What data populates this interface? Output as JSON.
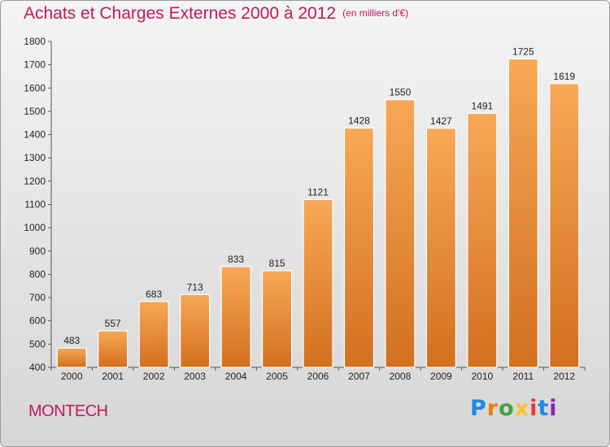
{
  "title": "Achats et Charges Externes 2000 à 2012",
  "subtitle": "(en milliers d'€)",
  "commune": "MONTECH",
  "logo": [
    "P",
    "r",
    "o",
    "x",
    "i",
    "t",
    "i"
  ],
  "colors": {
    "title": "#c2185b",
    "bar_light": "#f7a857",
    "bar_dark": "#d2701f"
  },
  "chart_data": {
    "type": "bar",
    "categories": [
      "2000",
      "2001",
      "2002",
      "2003",
      "2004",
      "2005",
      "2006",
      "2007",
      "2008",
      "2009",
      "2010",
      "2011",
      "2012"
    ],
    "values": [
      483,
      557,
      683,
      713,
      833,
      815,
      1121,
      1428,
      1550,
      1427,
      1491,
      1725,
      1619
    ],
    "title": "Achats et Charges Externes 2000 à 2012",
    "xlabel": "",
    "ylabel": "",
    "ylim": [
      400,
      1800
    ],
    "yticks": [
      400,
      500,
      600,
      700,
      800,
      900,
      1000,
      1100,
      1200,
      1300,
      1400,
      1500,
      1600,
      1700,
      1800
    ],
    "grid": false,
    "legend": "none"
  }
}
